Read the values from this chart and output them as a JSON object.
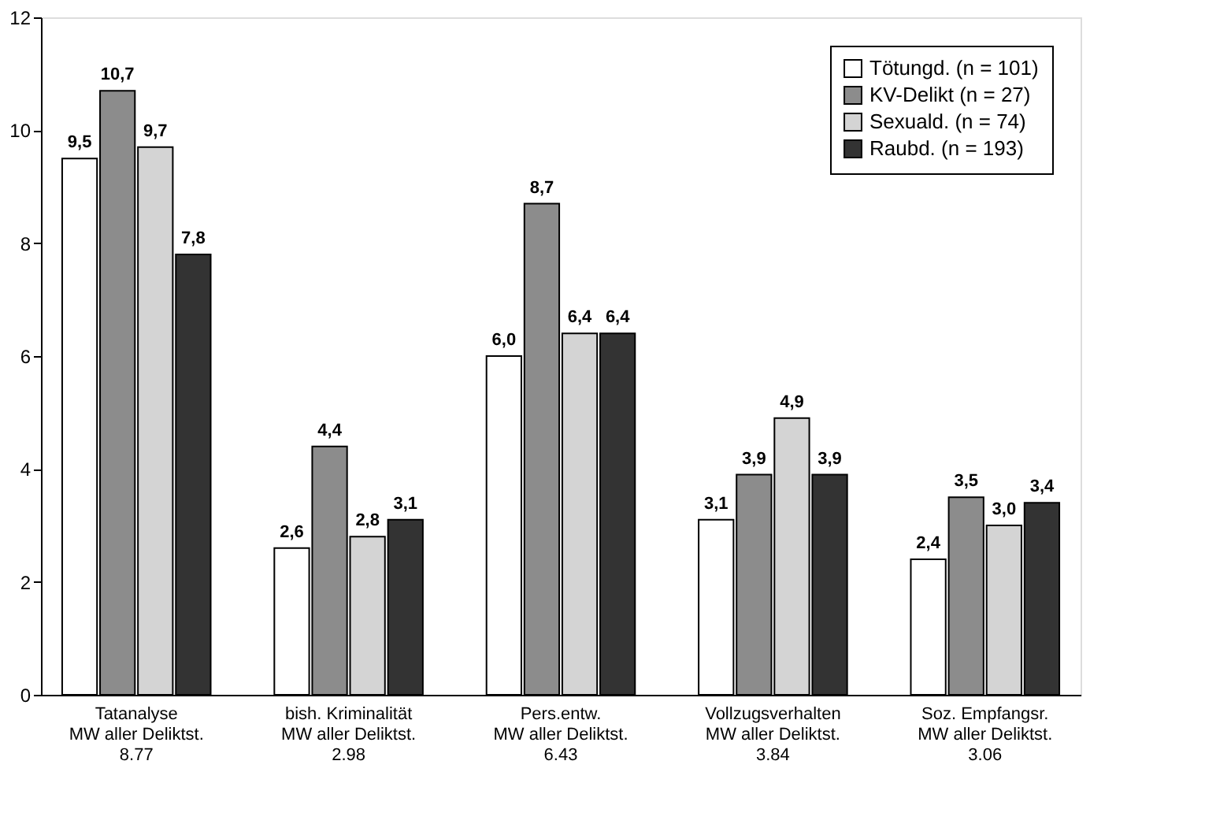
{
  "chart_data": {
    "type": "bar",
    "categories": [
      "Tatanalyse\nMW aller Deliktst.\n8.77",
      "bish. Kriminalität\nMW aller Deliktst.\n2.98",
      "Pers.entw.\nMW aller Deliktst.\n6.43",
      "Vollzugsverhalten\nMW aller Deliktst.\n3.84",
      "Soz. Empfangsr.\nMW aller Deliktst.\n3.06"
    ],
    "series": [
      {
        "name": "Tötungd. (n = 101)",
        "color": "#ffffff",
        "values": [
          9.5,
          2.6,
          6.0,
          3.1,
          2.4
        ],
        "value_labels": [
          "9,5",
          "2,6",
          "6,0",
          "3,1",
          "2,4"
        ]
      },
      {
        "name": "KV-Delikt (n = 27)",
        "color": "#8c8c8c",
        "values": [
          10.7,
          4.4,
          8.7,
          3.9,
          3.5
        ],
        "value_labels": [
          "10,7",
          "4,4",
          "8,7",
          "3,9",
          "3,5"
        ]
      },
      {
        "name": "Sexuald. (n = 74)",
        "color": "#d4d4d4",
        "values": [
          9.7,
          2.8,
          6.4,
          4.9,
          3.0
        ],
        "value_labels": [
          "9,7",
          "2,8",
          "6,4",
          "4,9",
          "3,0"
        ]
      },
      {
        "name": "Raubd. (n = 193)",
        "color": "#333333",
        "values": [
          7.8,
          3.1,
          6.4,
          3.9,
          3.4
        ],
        "value_labels": [
          "7,8",
          "3,1",
          "6,4",
          "3,9",
          "3,4"
        ]
      }
    ],
    "ylim": [
      0,
      12
    ],
    "yticks": [
      0,
      2,
      4,
      6,
      8,
      10,
      12
    ],
    "grid": false,
    "legend": "top right"
  }
}
